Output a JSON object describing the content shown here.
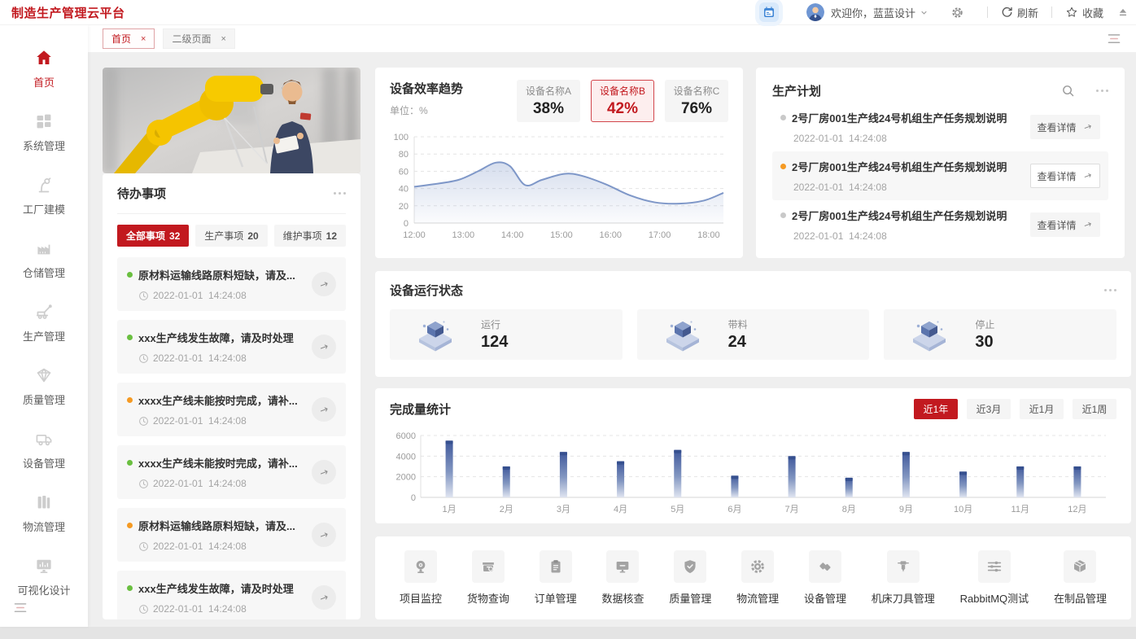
{
  "header": {
    "logo": "制造生产管理云平台",
    "welcome": "欢迎你，蓝蓝设计",
    "refresh_label": "刷新",
    "favorite_label": "收藏"
  },
  "tab_bar": {
    "tabs": [
      {
        "label": "首页",
        "close": "×",
        "active": true
      },
      {
        "label": "二级页面",
        "close": "×",
        "active": false
      }
    ]
  },
  "sidebar": {
    "items": [
      {
        "label": "首页",
        "icon": "home-icon",
        "active": true
      },
      {
        "label": "系统管理",
        "icon": "system-icon",
        "active": false
      },
      {
        "label": "工厂建模",
        "icon": "factory-model-icon",
        "active": false
      },
      {
        "label": "仓储管理",
        "icon": "warehouse-icon",
        "active": false
      },
      {
        "label": "生产管理",
        "icon": "production-icon",
        "active": false
      },
      {
        "label": "质量管理",
        "icon": "quality-diamond-icon",
        "active": false
      },
      {
        "label": "设备管理",
        "icon": "device-truck-icon",
        "active": false
      },
      {
        "label": "物流管理",
        "icon": "logistics-icon",
        "active": false
      },
      {
        "label": "可视化设计",
        "icon": "visual-design-icon",
        "active": false
      }
    ]
  },
  "todo": {
    "title": "待办事项",
    "tabs": [
      {
        "label": "全部事项",
        "count": "32",
        "active": true
      },
      {
        "label": "生产事项",
        "count": "20",
        "active": false
      },
      {
        "label": "维护事项",
        "count": "12",
        "active": false
      }
    ],
    "items": [
      {
        "dot": "green",
        "text": "原材料运输线路原料短缺，请及...",
        "time": "2022-01-01  14:24:08"
      },
      {
        "dot": "green",
        "text": "xxx生产线发生故障，请及时处理",
        "time": "2022-01-01  14:24:08"
      },
      {
        "dot": "orange",
        "text": "xxxx生产线未能按时完成，请补...",
        "time": "2022-01-01  14:24:08"
      },
      {
        "dot": "green",
        "text": "xxxx生产线未能按时完成，请补...",
        "time": "2022-01-01  14:24:08"
      },
      {
        "dot": "orange",
        "text": "原材料运输线路原料短缺，请及...",
        "time": "2022-01-01  14:24:08"
      },
      {
        "dot": "green",
        "text": "xxx生产线发生故障，请及时处理",
        "time": "2022-01-01  14:24:08"
      }
    ]
  },
  "efficiency": {
    "title": "设备效率趋势",
    "unit_label": "单位：%",
    "devices": [
      {
        "name": "设备名称A",
        "value": "38%",
        "active": false
      },
      {
        "name": "设备名称B",
        "value": "42%",
        "active": true
      },
      {
        "name": "设备名称C",
        "value": "76%",
        "active": false
      }
    ]
  },
  "production_plan": {
    "title": "生产计划",
    "detail_label": "查看详情",
    "items": [
      {
        "dot": "gray",
        "highlight": false,
        "text": "2号厂房001生产线24号机组生产任务规划说明",
        "time": "2022-01-01  14:24:08"
      },
      {
        "dot": "orange",
        "highlight": true,
        "text": "2号厂房001生产线24号机组生产任务规划说明",
        "time": "2022-01-01  14:24:08"
      },
      {
        "dot": "gray",
        "highlight": false,
        "text": "2号厂房001生产线24号机组生产任务规划说明",
        "time": "2022-01-01  14:24:08"
      }
    ]
  },
  "device_status": {
    "title": "设备运行状态",
    "stats": [
      {
        "label": "运行",
        "value": "124"
      },
      {
        "label": "带料",
        "value": "24"
      },
      {
        "label": "停止",
        "value": "30"
      }
    ]
  },
  "completion": {
    "title": "完成量统计",
    "filters": [
      {
        "label": "近1年",
        "active": true
      },
      {
        "label": "近3月",
        "active": false
      },
      {
        "label": "近1月",
        "active": false
      },
      {
        "label": "近1周",
        "active": false
      }
    ]
  },
  "quick_access": {
    "items": [
      {
        "label": "项目监控",
        "icon": "camera-icon"
      },
      {
        "label": "货物查询",
        "icon": "cargo-search-icon"
      },
      {
        "label": "订单管理",
        "icon": "clipboard-icon"
      },
      {
        "label": "数据核查",
        "icon": "data-monitor-icon"
      },
      {
        "label": "质量管理",
        "icon": "shield-check-icon"
      },
      {
        "label": "物流管理",
        "icon": "gear-icon"
      },
      {
        "label": "设备管理",
        "icon": "diamonds-icon"
      },
      {
        "label": "机床刀具管理",
        "icon": "machine-tool-icon"
      },
      {
        "label": "RabbitMQ测试",
        "icon": "sliders-icon"
      },
      {
        "label": "在制品管理",
        "icon": "box-3d-icon"
      }
    ]
  },
  "colors": {
    "accent_red": "#c2191f",
    "line_blue": "#7e97c8",
    "bar_blue_top": "#3f589b",
    "dot_green": "#6abf40",
    "dot_orange": "#f59a23",
    "dot_gray": "#c9c9c9"
  },
  "chart_data": [
    {
      "id": "efficiency_trend",
      "type": "area",
      "title": "设备效率趋势",
      "unit": "%",
      "x_ticks": [
        "12:00",
        "13:00",
        "14:00",
        "15:00",
        "16:00",
        "17:00",
        "18:00"
      ],
      "ylim": [
        0,
        100
      ],
      "y_ticks": [
        0,
        20,
        40,
        60,
        80,
        100
      ],
      "grid": "dashed",
      "points": [
        [
          0,
          42
        ],
        [
          0.4,
          45
        ],
        [
          0.9,
          50
        ],
        [
          1.3,
          60
        ],
        [
          1.66,
          70
        ],
        [
          1.95,
          66
        ],
        [
          2.26,
          44
        ],
        [
          2.6,
          50
        ],
        [
          3.05,
          57
        ],
        [
          3.4,
          55
        ],
        [
          3.9,
          45
        ],
        [
          4.4,
          32
        ],
        [
          4.9,
          24
        ],
        [
          5.4,
          22.5
        ],
        [
          5.9,
          26
        ],
        [
          6.3,
          35
        ]
      ],
      "x_span": 6.3
    },
    {
      "id": "completion_stats",
      "type": "bar",
      "title": "完成量统计",
      "categories": [
        "1月",
        "2月",
        "3月",
        "4月",
        "5月",
        "6月",
        "7月",
        "8月",
        "9月",
        "10月",
        "11月",
        "12月"
      ],
      "values": [
        5500,
        3000,
        4400,
        3500,
        4600,
        2100,
        4000,
        1900,
        4400,
        2500,
        3000,
        3000
      ],
      "ylim": [
        0,
        6000
      ],
      "y_ticks": [
        0,
        2000,
        4000,
        6000
      ],
      "grid": "dashed"
    }
  ]
}
